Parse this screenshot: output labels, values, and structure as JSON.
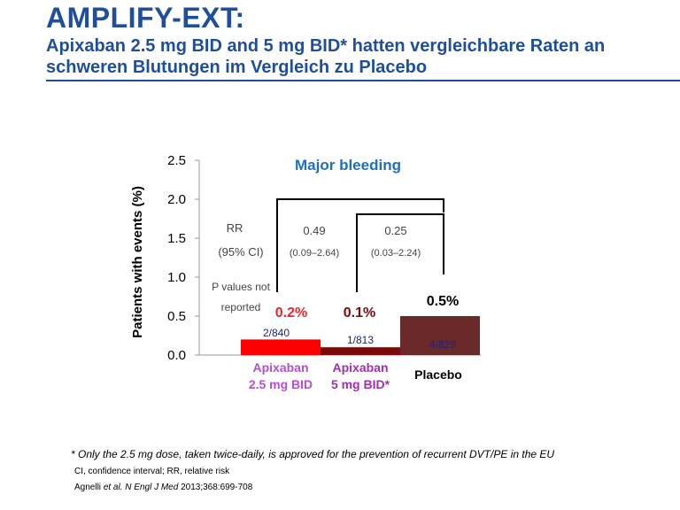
{
  "header": {
    "title": "AMPLIFY-EXT:",
    "subtitle": "Apixaban 2.5 mg BID and 5 mg BID* hatten vergleichbare Raten an schweren Blutungen im Vergleich zu Placebo"
  },
  "chart_data": {
    "type": "bar",
    "title": "Major bleeding",
    "ylabel": "Patients with events (%)",
    "xlabel": "",
    "ylim": [
      0,
      2.5
    ],
    "yticks": [
      "0.0",
      "0.5",
      "1.0",
      "1.5",
      "2.0",
      "2.5"
    ],
    "categories": [
      {
        "line1": "Apixaban",
        "line2": "2.5 mg BID"
      },
      {
        "line1": "Apixaban",
        "line2": "5 mg BID*"
      },
      {
        "line1": "Placebo",
        "line2": ""
      }
    ],
    "values": [
      0.2,
      0.1,
      0.5
    ],
    "value_labels": [
      "0.2%",
      "0.1%",
      "0.5%"
    ],
    "counts": [
      "2/840",
      "1/813",
      "4/829"
    ],
    "bar_colors": [
      "#ff0000",
      "#7b0a0a",
      "#6b2a2a"
    ],
    "value_label_colors": [
      "#e8262b",
      "#7b0a0a",
      "#000000"
    ],
    "category_label_colors": [
      "#b44fd0",
      "#a12fb5",
      "#000000"
    ],
    "count_colors": [
      "#1a237e",
      "#1a237e",
      "#1a237e"
    ],
    "title_color": "#1f6fbf",
    "rr": {
      "label": "RR",
      "ci_label": "(95% CI)",
      "comparisons": [
        {
          "rr": "0.49",
          "ci": "(0.09–2.64)"
        },
        {
          "rr": "0.25",
          "ci": "(0.03–2.24)"
        }
      ],
      "p_note_line1": "P values not",
      "p_note_line2": "reported"
    },
    "grid": false
  },
  "footnotes": {
    "asterisk": "* Only the 2.5 mg dose, taken twice-daily, is approved for the prevention of recurrent DVT/PE in the EU",
    "abbreviations": "CI, confidence interval; RR, relative risk",
    "reference_author": "Agnelli ",
    "reference_etal": "et al. N Engl J Med",
    "reference_rest": " 2013;368:699-708"
  }
}
